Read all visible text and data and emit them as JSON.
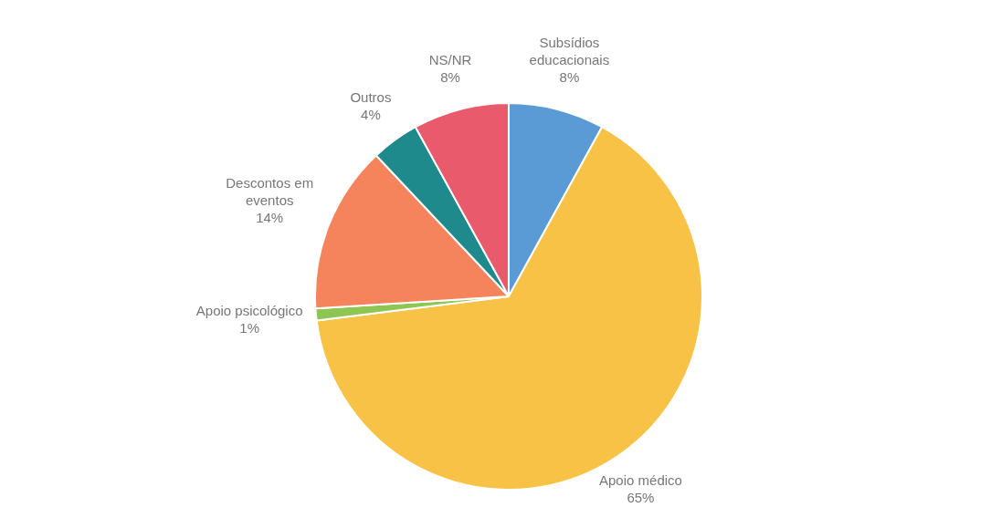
{
  "chart_data": {
    "type": "pie",
    "categories": [
      "Subsídios educacionais",
      "Apoio médico",
      "Apoio psicológico",
      "Descontos em eventos",
      "Outros",
      "NS/NR"
    ],
    "values": [
      8,
      65,
      1,
      14,
      4,
      8
    ],
    "value_labels": [
      "8%",
      "65%",
      "1%",
      "14%",
      "4%",
      "8%"
    ],
    "colors": [
      "#5b9bd5",
      "#f7c245",
      "#8fc553",
      "#f5845c",
      "#1e8a8c",
      "#e85a6c"
    ],
    "legend": false
  }
}
